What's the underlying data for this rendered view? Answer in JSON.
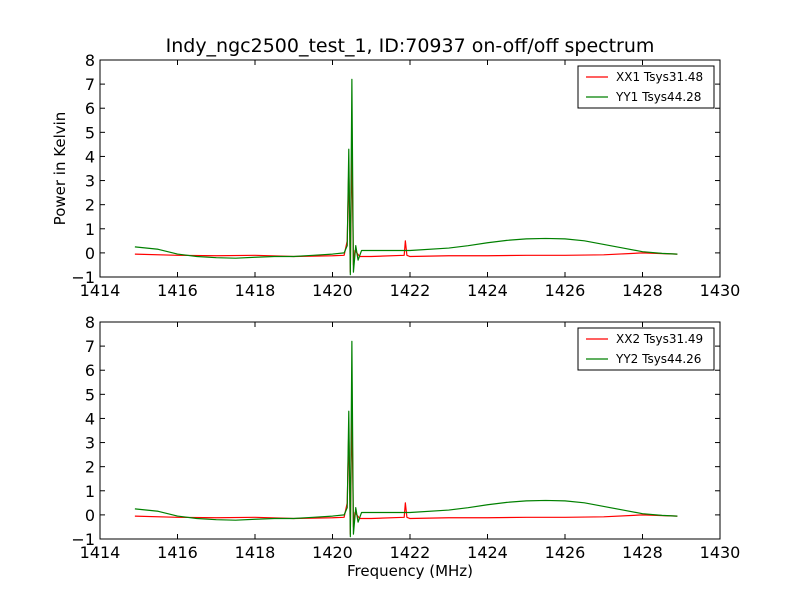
{
  "chart_data": [
    {
      "type": "line",
      "title": "Indy_ngc2500_test_1, ID:70937 on-off/off spectrum",
      "xlabel": "",
      "ylabel": "Power in Kelvin",
      "xlim": [
        1414,
        1430
      ],
      "ylim": [
        -1,
        8
      ],
      "xticks": [
        "1414",
        "1416",
        "1418",
        "1420",
        "1422",
        "1424",
        "1426",
        "1428",
        "1430"
      ],
      "yticks": [
        "−1",
        "0",
        "1",
        "2",
        "3",
        "4",
        "5",
        "6",
        "7",
        "8"
      ],
      "grid": false,
      "legend_position": "top-right",
      "series": [
        {
          "name": "XX1 Tsys31.48",
          "color": "#ff0000",
          "x": [
            1414.9,
            1416.0,
            1417.0,
            1418.0,
            1419.0,
            1420.0,
            1420.3,
            1420.38,
            1420.42,
            1420.46,
            1420.5,
            1420.54,
            1420.58,
            1420.7,
            1421.0,
            1421.85,
            1421.88,
            1421.92,
            1422.0,
            1423.0,
            1424.0,
            1425.0,
            1426.0,
            1427.0,
            1428.0,
            1428.9
          ],
          "y": [
            -0.05,
            -0.1,
            -0.12,
            -0.1,
            -0.15,
            -0.12,
            -0.1,
            0.5,
            3.5,
            -0.8,
            4.5,
            -0.5,
            0.1,
            -0.15,
            -0.15,
            -0.1,
            0.5,
            -0.1,
            -0.15,
            -0.12,
            -0.12,
            -0.1,
            -0.1,
            -0.08,
            0.0,
            -0.05
          ]
        },
        {
          "name": "YY1 Tsys44.28",
          "color": "#008000",
          "x": [
            1414.9,
            1415.5,
            1416.0,
            1416.5,
            1417.0,
            1417.5,
            1418.0,
            1418.5,
            1419.0,
            1419.5,
            1420.0,
            1420.3,
            1420.38,
            1420.42,
            1420.46,
            1420.5,
            1420.54,
            1420.6,
            1420.66,
            1420.75,
            1421.0,
            1422.0,
            1423.0,
            1423.5,
            1424.0,
            1424.5,
            1425.0,
            1425.5,
            1426.0,
            1426.5,
            1427.0,
            1427.5,
            1428.0,
            1428.5,
            1428.9
          ],
          "y": [
            0.25,
            0.15,
            -0.05,
            -0.15,
            -0.2,
            -0.22,
            -0.18,
            -0.15,
            -0.15,
            -0.1,
            -0.05,
            0.0,
            0.3,
            4.3,
            -0.9,
            7.2,
            -0.8,
            0.3,
            -0.3,
            0.1,
            0.1,
            0.1,
            0.2,
            0.3,
            0.42,
            0.52,
            0.58,
            0.6,
            0.58,
            0.5,
            0.35,
            0.2,
            0.05,
            -0.02,
            -0.05
          ]
        }
      ]
    },
    {
      "type": "line",
      "title": "",
      "xlabel": "Frequency (MHz)",
      "ylabel": "",
      "xlim": [
        1414,
        1430
      ],
      "ylim": [
        -1,
        8
      ],
      "xticks": [
        "1414",
        "1416",
        "1418",
        "1420",
        "1422",
        "1424",
        "1426",
        "1428",
        "1430"
      ],
      "yticks": [
        "−1",
        "0",
        "1",
        "2",
        "3",
        "4",
        "5",
        "6",
        "7",
        "8"
      ],
      "grid": false,
      "legend_position": "top-right",
      "series": [
        {
          "name": "XX2 Tsys31.49",
          "color": "#ff0000",
          "x": [
            1414.9,
            1416.0,
            1417.0,
            1418.0,
            1419.0,
            1420.0,
            1420.3,
            1420.38,
            1420.42,
            1420.46,
            1420.5,
            1420.54,
            1420.58,
            1420.7,
            1421.0,
            1421.85,
            1421.88,
            1421.92,
            1422.0,
            1423.0,
            1424.0,
            1425.0,
            1426.0,
            1427.0,
            1428.0,
            1428.9
          ],
          "y": [
            -0.05,
            -0.1,
            -0.12,
            -0.1,
            -0.15,
            -0.12,
            -0.1,
            0.5,
            3.5,
            -0.8,
            4.5,
            -0.5,
            0.1,
            -0.15,
            -0.15,
            -0.1,
            0.5,
            -0.1,
            -0.15,
            -0.12,
            -0.12,
            -0.1,
            -0.1,
            -0.08,
            0.0,
            -0.05
          ]
        },
        {
          "name": "YY2 Tsys44.26",
          "color": "#008000",
          "x": [
            1414.9,
            1415.5,
            1416.0,
            1416.5,
            1417.0,
            1417.5,
            1418.0,
            1418.5,
            1419.0,
            1419.5,
            1420.0,
            1420.3,
            1420.38,
            1420.42,
            1420.46,
            1420.5,
            1420.54,
            1420.6,
            1420.66,
            1420.75,
            1421.0,
            1422.0,
            1423.0,
            1423.5,
            1424.0,
            1424.5,
            1425.0,
            1425.5,
            1426.0,
            1426.5,
            1427.0,
            1427.5,
            1428.0,
            1428.5,
            1428.9
          ],
          "y": [
            0.25,
            0.15,
            -0.05,
            -0.15,
            -0.2,
            -0.22,
            -0.18,
            -0.15,
            -0.15,
            -0.1,
            -0.05,
            0.0,
            0.3,
            4.3,
            -0.9,
            7.2,
            -0.8,
            0.3,
            -0.3,
            0.1,
            0.1,
            0.1,
            0.2,
            0.3,
            0.42,
            0.52,
            0.58,
            0.6,
            0.58,
            0.5,
            0.35,
            0.2,
            0.05,
            -0.02,
            -0.05
          ]
        }
      ]
    }
  ]
}
